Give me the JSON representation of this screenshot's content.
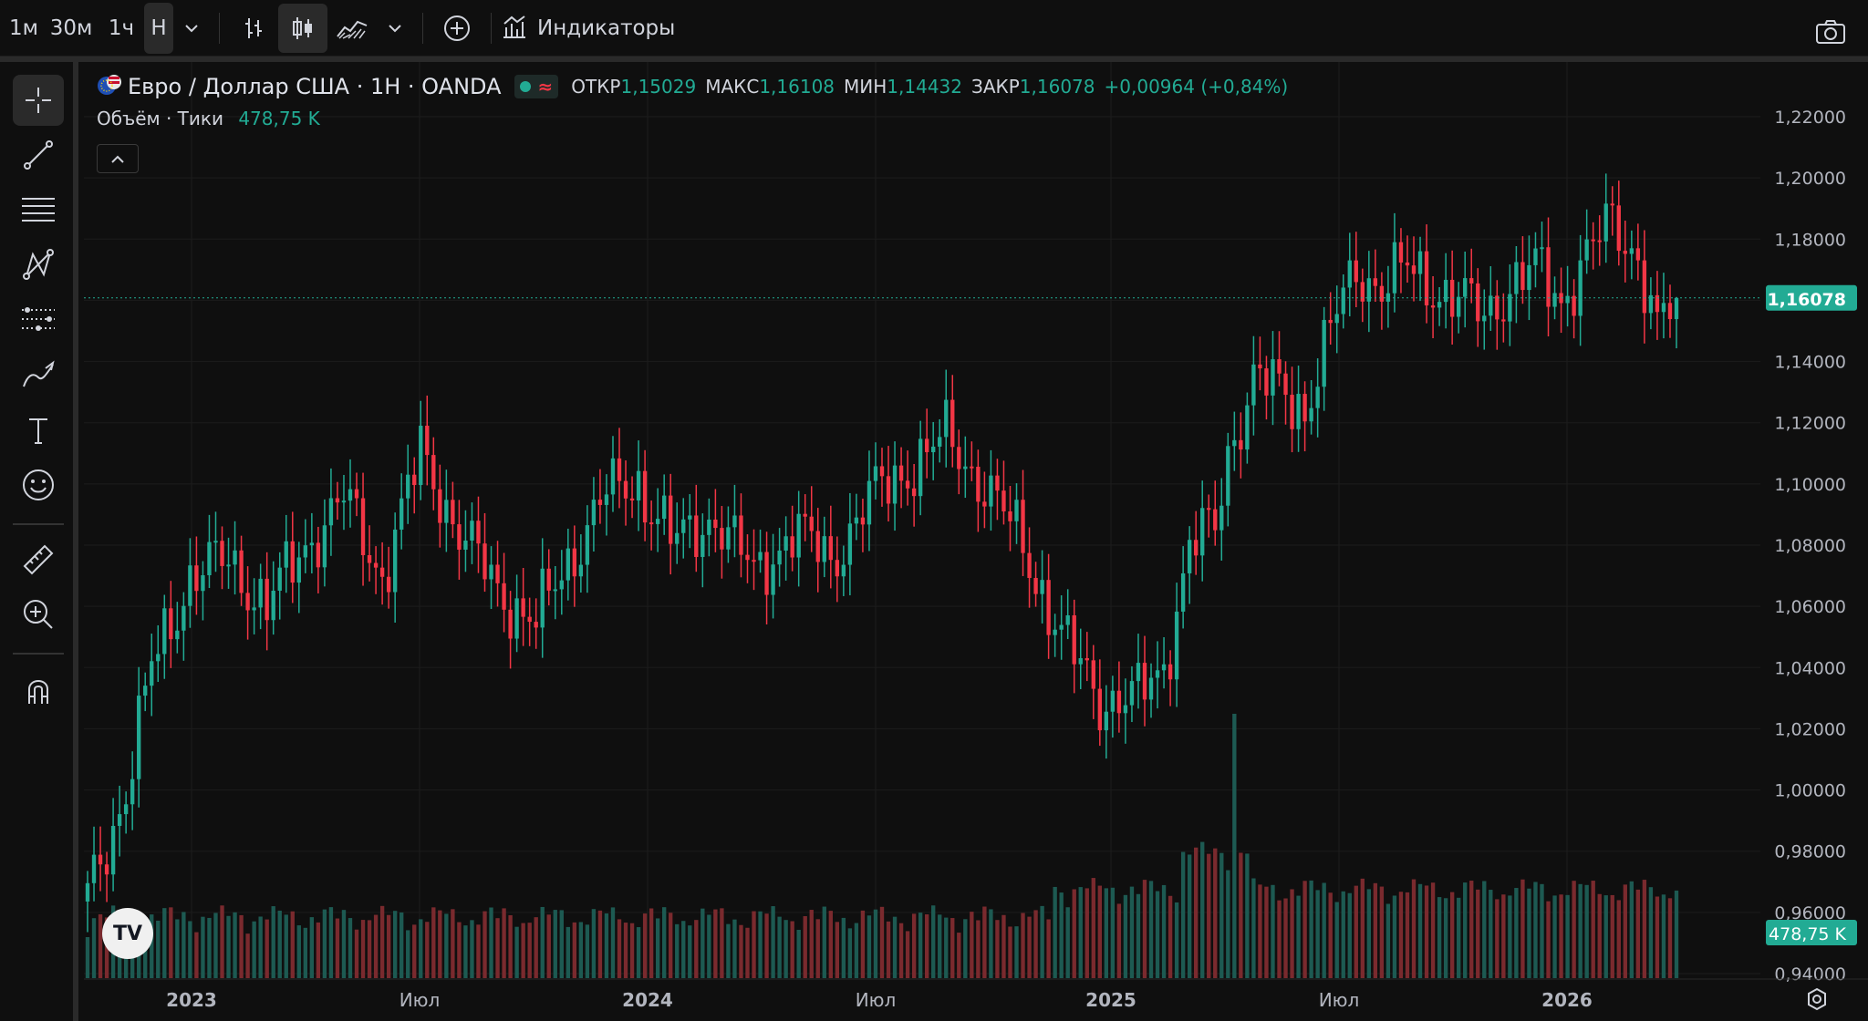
{
  "toolbar": {
    "timeframes": [
      "1м",
      "30м",
      "1ч",
      "Н"
    ],
    "indicators_label": "Индикаторы",
    "icons": [
      "chevron-down-icon",
      "bar-style-icon",
      "candles-icon",
      "area-chart-icon",
      "chevron-down-icon",
      "add-compare-icon",
      "indicators-icon",
      "camera-icon"
    ]
  },
  "side_tools": [
    "crosshair-icon",
    "trend-line-icon",
    "fib-lines-icon",
    "pattern-icon",
    "prediction-icon",
    "brush-icon",
    "text-icon",
    "emoji-icon",
    "ruler-icon",
    "zoom-in-icon",
    "magnet-icon"
  ],
  "legend": {
    "symbol": "Евро / Доллар США · 1Н · OANDA",
    "open_label": "ОТКР",
    "open": "1,15029",
    "high_label": "МАКС",
    "high": "1,16108",
    "low_label": "МИН",
    "low": "1,14432",
    "close_label": "ЗАКР",
    "close": "1,16078",
    "change": "+0,00964 (+0,84%)",
    "volume_label": "Объём · Тики",
    "volume": "478,75 K"
  },
  "price_axis": [
    "1,22000",
    "1,20000",
    "1,18000",
    "1,16000",
    "1,14000",
    "1,12000",
    "1,10000",
    "1,08000",
    "1,06000",
    "1,04000",
    "1,02000",
    "1,00000",
    "0,98000",
    "0,96000",
    "0,94000"
  ],
  "price_label": "1,16078",
  "volume_badge": "478,75 K",
  "time_axis": [
    {
      "label": "2023",
      "bold": true
    },
    {
      "label": "Июл",
      "bold": false
    },
    {
      "label": "2024",
      "bold": true
    },
    {
      "label": "Июл",
      "bold": false
    },
    {
      "label": "2025",
      "bold": true
    },
    {
      "label": "Июл",
      "bold": false
    },
    {
      "label": "2026",
      "bold": true
    }
  ],
  "logo": "TV",
  "colors": {
    "up": "#22ab94",
    "down": "#f23645",
    "up_vol": "#1d5a52",
    "down_vol": "#7a2a2e",
    "bg": "#0f0f0f"
  },
  "chart_data": {
    "type": "candlestick",
    "symbol": "EURUSD",
    "interval": "1W",
    "ylim": [
      0.94,
      1.22
    ],
    "anchors": [
      [
        0,
        0.965
      ],
      [
        6,
        1.0
      ],
      [
        10,
        1.04
      ],
      [
        16,
        1.07
      ],
      [
        22,
        1.075
      ],
      [
        28,
        1.06
      ],
      [
        34,
        1.08
      ],
      [
        40,
        1.095
      ],
      [
        46,
        1.07
      ],
      [
        52,
        1.11
      ],
      [
        58,
        1.085
      ],
      [
        64,
        1.065
      ],
      [
        70,
        1.055
      ],
      [
        74,
        1.07
      ],
      [
        80,
        1.095
      ],
      [
        86,
        1.1
      ],
      [
        92,
        1.08
      ],
      [
        98,
        1.09
      ],
      [
        104,
        1.07
      ],
      [
        110,
        1.085
      ],
      [
        116,
        1.075
      ],
      [
        122,
        1.095
      ],
      [
        128,
        1.105
      ],
      [
        134,
        1.115
      ],
      [
        140,
        1.1
      ],
      [
        146,
        1.08
      ],
      [
        152,
        1.05
      ],
      [
        158,
        1.03
      ],
      [
        164,
        1.03
      ],
      [
        168,
        1.04
      ],
      [
        172,
        1.08
      ],
      [
        176,
        1.085
      ],
      [
        178,
        1.11
      ],
      [
        182,
        1.135
      ],
      [
        186,
        1.13
      ],
      [
        190,
        1.125
      ],
      [
        194,
        1.15
      ],
      [
        198,
        1.17
      ],
      [
        202,
        1.165
      ],
      [
        206,
        1.17
      ],
      [
        210,
        1.165
      ],
      [
        214,
        1.16
      ],
      [
        218,
        1.155
      ],
      [
        222,
        1.165
      ],
      [
        226,
        1.17
      ],
      [
        230,
        1.16
      ],
      [
        234,
        1.175
      ],
      [
        238,
        1.185
      ],
      [
        242,
        1.175
      ],
      [
        245,
        1.15
      ],
      [
        248,
        1.161
      ]
    ],
    "volume_spike_index": 179,
    "last": {
      "open": 1.15029,
      "high": 1.16108,
      "low": 1.14432,
      "close": 1.16078
    }
  }
}
